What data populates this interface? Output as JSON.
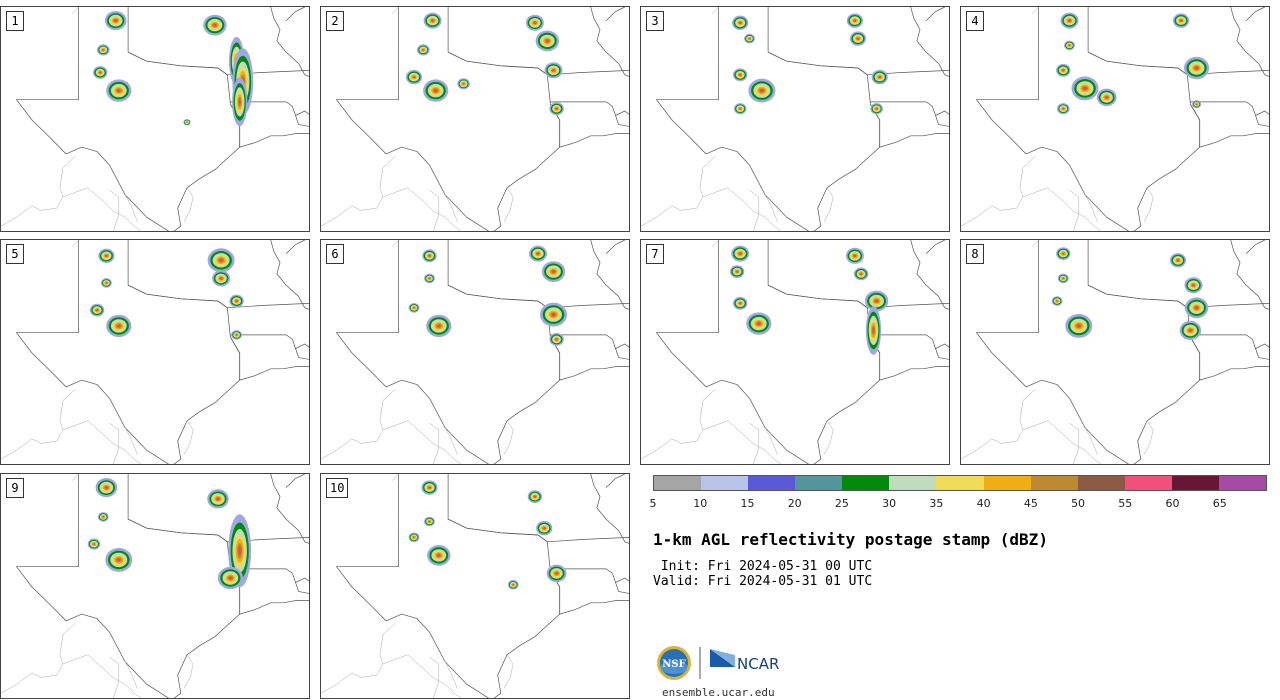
{
  "title": "1-km AGL reflectivity postage stamp (dBZ)",
  "init_line": " Init: Fri 2024-05-31 00 UTC",
  "valid_line": "Valid: Fri 2024-05-31 01 UTC",
  "url": "ensemble.ucar.edu",
  "logos": {
    "nsf": "NSF",
    "ncar": "NCAR"
  },
  "colorbar": {
    "ticks": [
      "5",
      "10",
      "15",
      "20",
      "25",
      "30",
      "35",
      "40",
      "45",
      "50",
      "55",
      "60",
      "65"
    ],
    "colors": [
      "#a5a5a5",
      "#b8c4ea",
      "#5a5ad6",
      "#52959c",
      "#038a0d",
      "#bfdcbf",
      "#f0da5a",
      "#efae14",
      "#bd8a34",
      "#8c5a42",
      "#f1507b",
      "#661733",
      "#a44ba6"
    ]
  },
  "panels": [
    {
      "label": "1",
      "storms": [
        [
          0.37,
          0.06,
          1.2
        ],
        [
          0.33,
          0.19,
          0.7
        ],
        [
          0.32,
          0.29,
          0.8
        ],
        [
          0.38,
          0.37,
          1.4
        ],
        [
          0.69,
          0.08,
          1.3
        ],
        [
          0.76,
          0.24,
          1.6
        ],
        [
          0.78,
          0.33,
          2.2
        ],
        [
          0.77,
          0.42,
          1.6
        ],
        [
          0.6,
          0.51,
          0.4
        ]
      ]
    },
    {
      "label": "2",
      "storms": [
        [
          0.36,
          0.06,
          1.0
        ],
        [
          0.33,
          0.19,
          0.7
        ],
        [
          0.3,
          0.31,
          0.9
        ],
        [
          0.37,
          0.37,
          1.4
        ],
        [
          0.46,
          0.34,
          0.7
        ],
        [
          0.69,
          0.07,
          1.0
        ],
        [
          0.73,
          0.15,
          1.3
        ],
        [
          0.75,
          0.28,
          1.0
        ],
        [
          0.76,
          0.45,
          0.8
        ]
      ]
    },
    {
      "label": "3",
      "storms": [
        [
          0.32,
          0.07,
          0.9
        ],
        [
          0.35,
          0.14,
          0.6
        ],
        [
          0.32,
          0.3,
          0.8
        ],
        [
          0.39,
          0.37,
          1.5
        ],
        [
          0.32,
          0.45,
          0.7
        ],
        [
          0.69,
          0.06,
          0.9
        ],
        [
          0.7,
          0.14,
          0.9
        ],
        [
          0.77,
          0.31,
          0.9
        ],
        [
          0.76,
          0.45,
          0.7
        ]
      ]
    },
    {
      "label": "4",
      "storms": [
        [
          0.35,
          0.06,
          1.0
        ],
        [
          0.35,
          0.17,
          0.6
        ],
        [
          0.33,
          0.28,
          0.8
        ],
        [
          0.4,
          0.36,
          1.5
        ],
        [
          0.47,
          0.4,
          1.1
        ],
        [
          0.33,
          0.45,
          0.7
        ],
        [
          0.71,
          0.06,
          0.9
        ],
        [
          0.76,
          0.27,
          1.4
        ],
        [
          0.76,
          0.43,
          0.5
        ]
      ]
    },
    {
      "label": "5",
      "storms": [
        [
          0.34,
          0.07,
          0.9
        ],
        [
          0.34,
          0.19,
          0.6
        ],
        [
          0.31,
          0.31,
          0.8
        ],
        [
          0.38,
          0.38,
          1.4
        ],
        [
          0.71,
          0.09,
          1.5
        ],
        [
          0.71,
          0.17,
          1.0
        ],
        [
          0.76,
          0.27,
          0.8
        ],
        [
          0.76,
          0.42,
          0.6
        ]
      ]
    },
    {
      "label": "6",
      "storms": [
        [
          0.35,
          0.07,
          0.8
        ],
        [
          0.35,
          0.17,
          0.6
        ],
        [
          0.3,
          0.3,
          0.6
        ],
        [
          0.38,
          0.38,
          1.4
        ],
        [
          0.7,
          0.06,
          1.0
        ],
        [
          0.75,
          0.14,
          1.3
        ],
        [
          0.75,
          0.33,
          1.5
        ],
        [
          0.76,
          0.44,
          0.8
        ]
      ]
    },
    {
      "label": "7",
      "storms": [
        [
          0.32,
          0.06,
          1.0
        ],
        [
          0.31,
          0.14,
          0.8
        ],
        [
          0.32,
          0.28,
          0.8
        ],
        [
          0.38,
          0.37,
          1.4
        ],
        [
          0.69,
          0.07,
          1.0
        ],
        [
          0.71,
          0.15,
          0.8
        ],
        [
          0.76,
          0.27,
          1.3
        ],
        [
          0.75,
          0.4,
          1.6
        ]
      ]
    },
    {
      "label": "8",
      "storms": [
        [
          0.33,
          0.06,
          0.8
        ],
        [
          0.33,
          0.17,
          0.6
        ],
        [
          0.31,
          0.27,
          0.6
        ],
        [
          0.38,
          0.38,
          1.5
        ],
        [
          0.7,
          0.09,
          0.9
        ],
        [
          0.75,
          0.2,
          1.0
        ],
        [
          0.76,
          0.3,
          1.3
        ],
        [
          0.74,
          0.4,
          1.2
        ]
      ]
    },
    {
      "label": "9",
      "storms": [
        [
          0.34,
          0.06,
          1.2
        ],
        [
          0.33,
          0.19,
          0.6
        ],
        [
          0.3,
          0.31,
          0.7
        ],
        [
          0.38,
          0.38,
          1.5
        ],
        [
          0.7,
          0.11,
          1.2
        ],
        [
          0.77,
          0.34,
          2.4
        ],
        [
          0.74,
          0.46,
          1.4
        ]
      ]
    },
    {
      "label": "10",
      "storms": [
        [
          0.35,
          0.06,
          0.9
        ],
        [
          0.35,
          0.21,
          0.6
        ],
        [
          0.3,
          0.28,
          0.6
        ],
        [
          0.38,
          0.36,
          1.3
        ],
        [
          0.69,
          0.1,
          0.8
        ],
        [
          0.72,
          0.24,
          0.9
        ],
        [
          0.76,
          0.44,
          1.1
        ],
        [
          0.62,
          0.49,
          0.6
        ]
      ]
    }
  ]
}
